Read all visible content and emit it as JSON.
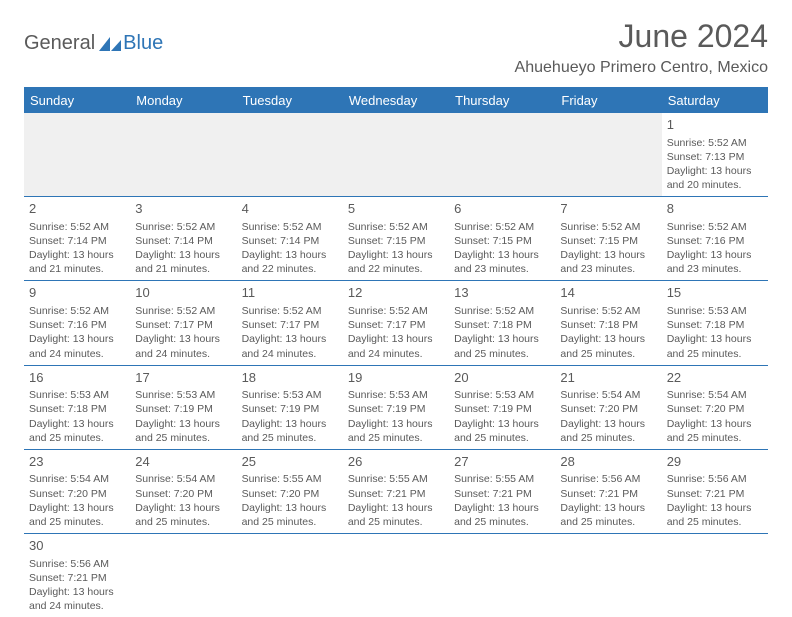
{
  "logo": {
    "text1": "General",
    "text2": "Blue",
    "icon_color": "#2e75b6"
  },
  "title": "June 2024",
  "location": "Ahuehueyo Primero Centro, Mexico",
  "colors": {
    "header_bg": "#2e75b6",
    "header_text": "#ffffff",
    "divider": "#2e75b6",
    "body_text": "#5a5a5a",
    "spacer_bg": "#f0f0f0",
    "background": "#ffffff"
  },
  "day_headers": [
    "Sunday",
    "Monday",
    "Tuesday",
    "Wednesday",
    "Thursday",
    "Friday",
    "Saturday"
  ],
  "weeks": [
    [
      null,
      null,
      null,
      null,
      null,
      null,
      {
        "n": "1",
        "sr": "5:52 AM",
        "ss": "7:13 PM",
        "dl": "13 hours and 20 minutes."
      }
    ],
    [
      {
        "n": "2",
        "sr": "5:52 AM",
        "ss": "7:14 PM",
        "dl": "13 hours and 21 minutes."
      },
      {
        "n": "3",
        "sr": "5:52 AM",
        "ss": "7:14 PM",
        "dl": "13 hours and 21 minutes."
      },
      {
        "n": "4",
        "sr": "5:52 AM",
        "ss": "7:14 PM",
        "dl": "13 hours and 22 minutes."
      },
      {
        "n": "5",
        "sr": "5:52 AM",
        "ss": "7:15 PM",
        "dl": "13 hours and 22 minutes."
      },
      {
        "n": "6",
        "sr": "5:52 AM",
        "ss": "7:15 PM",
        "dl": "13 hours and 23 minutes."
      },
      {
        "n": "7",
        "sr": "5:52 AM",
        "ss": "7:15 PM",
        "dl": "13 hours and 23 minutes."
      },
      {
        "n": "8",
        "sr": "5:52 AM",
        "ss": "7:16 PM",
        "dl": "13 hours and 23 minutes."
      }
    ],
    [
      {
        "n": "9",
        "sr": "5:52 AM",
        "ss": "7:16 PM",
        "dl": "13 hours and 24 minutes."
      },
      {
        "n": "10",
        "sr": "5:52 AM",
        "ss": "7:17 PM",
        "dl": "13 hours and 24 minutes."
      },
      {
        "n": "11",
        "sr": "5:52 AM",
        "ss": "7:17 PM",
        "dl": "13 hours and 24 minutes."
      },
      {
        "n": "12",
        "sr": "5:52 AM",
        "ss": "7:17 PM",
        "dl": "13 hours and 24 minutes."
      },
      {
        "n": "13",
        "sr": "5:52 AM",
        "ss": "7:18 PM",
        "dl": "13 hours and 25 minutes."
      },
      {
        "n": "14",
        "sr": "5:52 AM",
        "ss": "7:18 PM",
        "dl": "13 hours and 25 minutes."
      },
      {
        "n": "15",
        "sr": "5:53 AM",
        "ss": "7:18 PM",
        "dl": "13 hours and 25 minutes."
      }
    ],
    [
      {
        "n": "16",
        "sr": "5:53 AM",
        "ss": "7:18 PM",
        "dl": "13 hours and 25 minutes."
      },
      {
        "n": "17",
        "sr": "5:53 AM",
        "ss": "7:19 PM",
        "dl": "13 hours and 25 minutes."
      },
      {
        "n": "18",
        "sr": "5:53 AM",
        "ss": "7:19 PM",
        "dl": "13 hours and 25 minutes."
      },
      {
        "n": "19",
        "sr": "5:53 AM",
        "ss": "7:19 PM",
        "dl": "13 hours and 25 minutes."
      },
      {
        "n": "20",
        "sr": "5:53 AM",
        "ss": "7:19 PM",
        "dl": "13 hours and 25 minutes."
      },
      {
        "n": "21",
        "sr": "5:54 AM",
        "ss": "7:20 PM",
        "dl": "13 hours and 25 minutes."
      },
      {
        "n": "22",
        "sr": "5:54 AM",
        "ss": "7:20 PM",
        "dl": "13 hours and 25 minutes."
      }
    ],
    [
      {
        "n": "23",
        "sr": "5:54 AM",
        "ss": "7:20 PM",
        "dl": "13 hours and 25 minutes."
      },
      {
        "n": "24",
        "sr": "5:54 AM",
        "ss": "7:20 PM",
        "dl": "13 hours and 25 minutes."
      },
      {
        "n": "25",
        "sr": "5:55 AM",
        "ss": "7:20 PM",
        "dl": "13 hours and 25 minutes."
      },
      {
        "n": "26",
        "sr": "5:55 AM",
        "ss": "7:21 PM",
        "dl": "13 hours and 25 minutes."
      },
      {
        "n": "27",
        "sr": "5:55 AM",
        "ss": "7:21 PM",
        "dl": "13 hours and 25 minutes."
      },
      {
        "n": "28",
        "sr": "5:56 AM",
        "ss": "7:21 PM",
        "dl": "13 hours and 25 minutes."
      },
      {
        "n": "29",
        "sr": "5:56 AM",
        "ss": "7:21 PM",
        "dl": "13 hours and 25 minutes."
      }
    ],
    [
      {
        "n": "30",
        "sr": "5:56 AM",
        "ss": "7:21 PM",
        "dl": "13 hours and 24 minutes."
      },
      null,
      null,
      null,
      null,
      null,
      null
    ]
  ],
  "labels": {
    "sunrise": "Sunrise:",
    "sunset": "Sunset:",
    "daylight": "Daylight:"
  }
}
